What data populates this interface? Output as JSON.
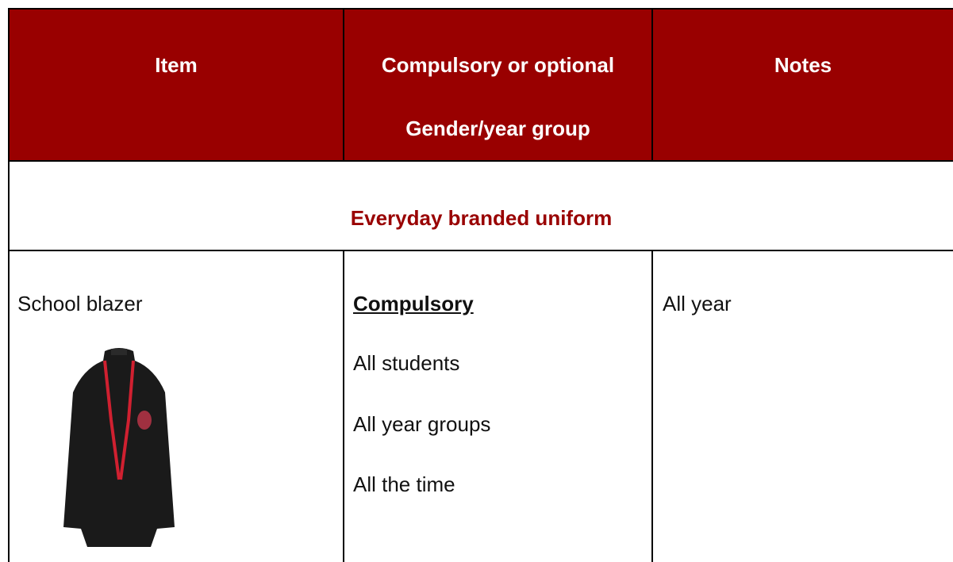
{
  "table": {
    "header": [
      "Item",
      "Compulsory or optional",
      "Gender/year group",
      "Notes"
    ],
    "section": "Everyday branded uniform",
    "rows": [
      {
        "item": "School blazer",
        "requirement": {
          "label": "Compulsory",
          "details": [
            "All students",
            "All year groups",
            "All the time"
          ]
        },
        "notes": "All year"
      }
    ]
  }
}
